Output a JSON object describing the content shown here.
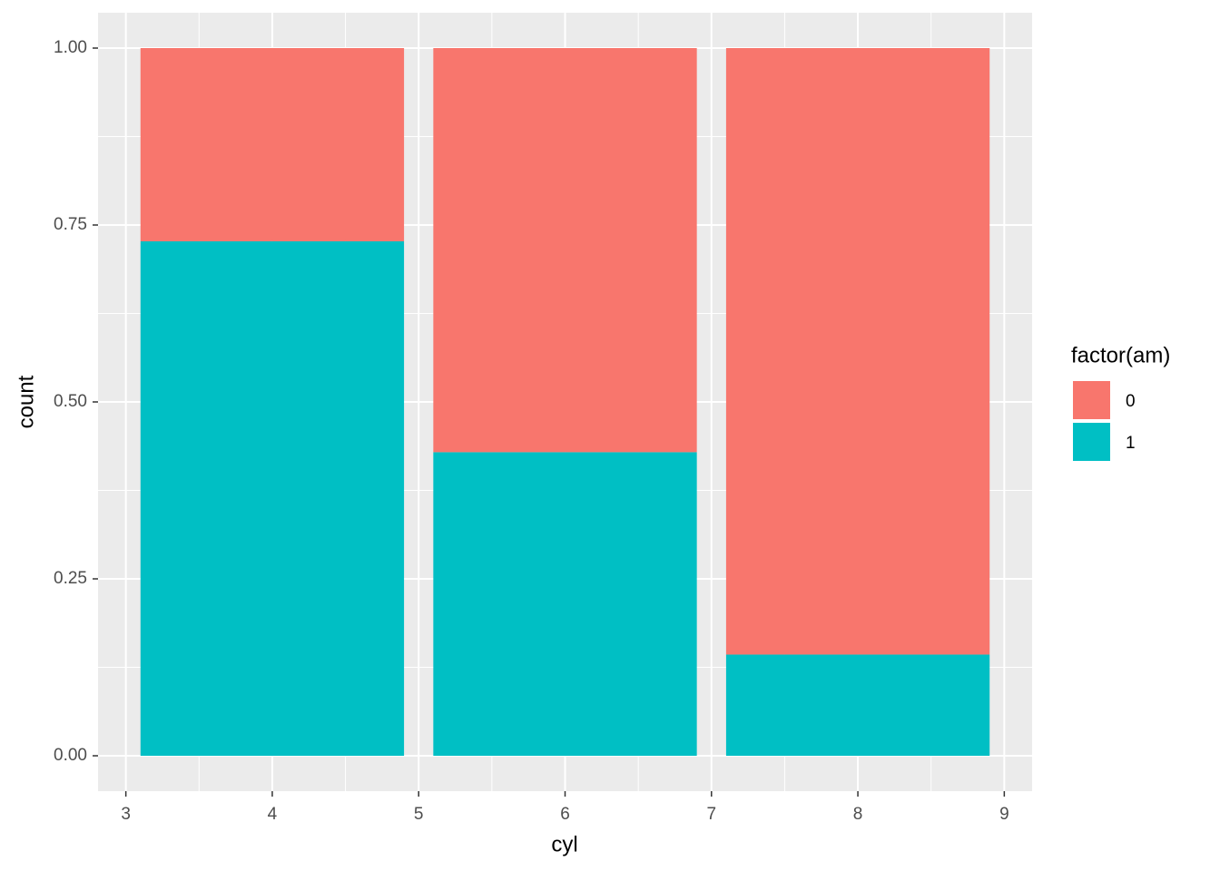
{
  "chart_data": {
    "type": "bar",
    "stacked": true,
    "x_label": "cyl",
    "y_label": "count",
    "x": [
      4,
      6,
      8
    ],
    "series": [
      {
        "name": "0",
        "color": "#F8766D",
        "values": [
          0.273,
          0.571,
          0.857
        ]
      },
      {
        "name": "1",
        "color": "#00BFC4",
        "values": [
          0.727,
          0.429,
          0.143
        ]
      }
    ],
    "legend_title": "factor(am)",
    "xlim": [
      2.81,
      9.19
    ],
    "xticks": [
      3,
      4,
      5,
      6,
      7,
      8,
      9
    ],
    "ylim": [
      -0.05,
      1.05
    ],
    "yticks": [
      {
        "value": 0,
        "label": "0.00"
      },
      {
        "value": 0.25,
        "label": "0.25"
      },
      {
        "value": 0.5,
        "label": "0.50"
      },
      {
        "value": 0.75,
        "label": "0.75"
      },
      {
        "value": 1,
        "label": "1.00"
      }
    ],
    "grid": true,
    "legend": "right"
  }
}
